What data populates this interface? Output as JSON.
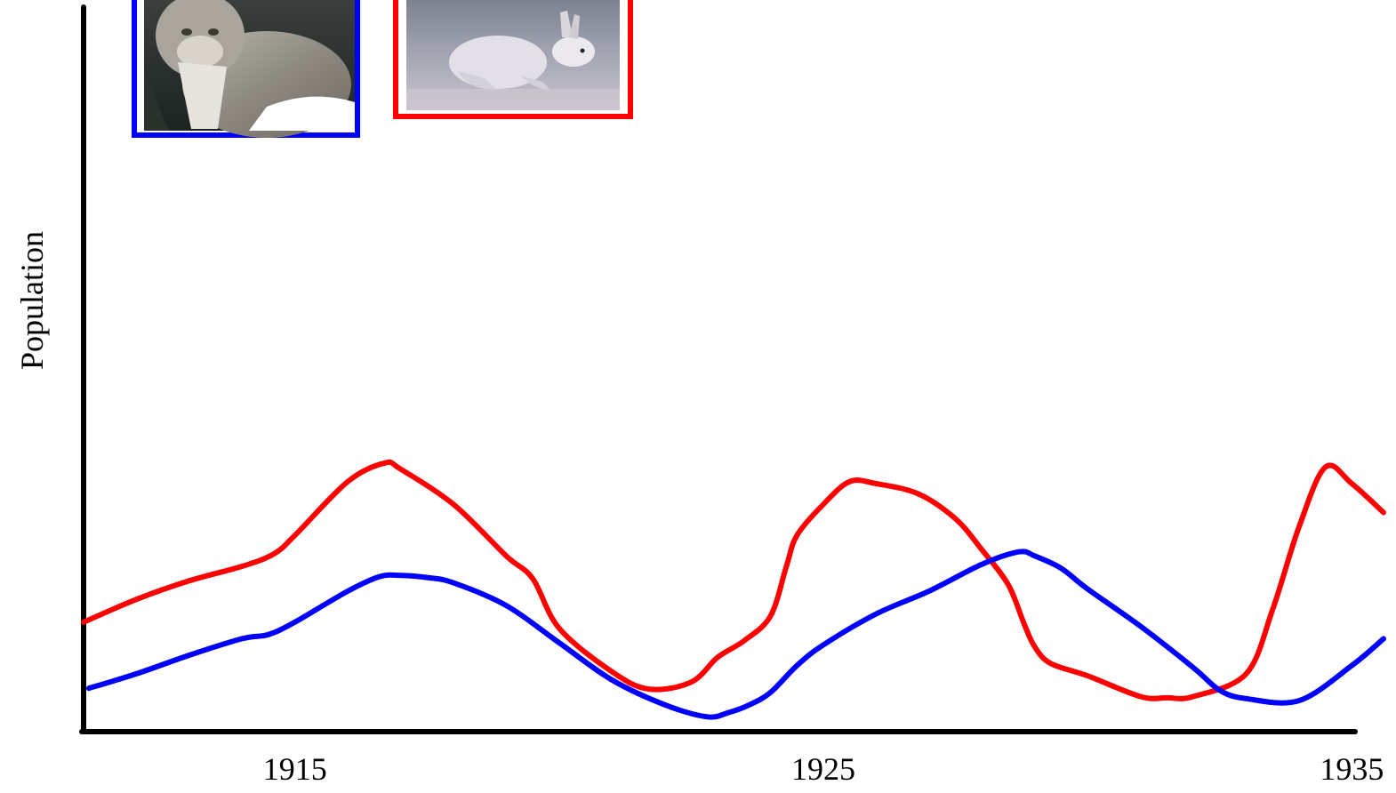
{
  "chart_data": {
    "type": "line",
    "title": "",
    "xlabel": "",
    "ylabel": "Population",
    "x_ticks": [
      1915,
      1925,
      1935
    ],
    "xlim": [
      1911,
      1935.6
    ],
    "ylim": [
      0,
      100
    ],
    "grid": false,
    "legend": "none",
    "series": [
      {
        "key": "lynx",
        "color": "#0000ff",
        "picture": "lynx-photo",
        "x": [
          1911.1,
          1912,
          1913,
          1914,
          1914.5,
          1915,
          1916,
          1916.6,
          1917,
          1917.5,
          1918,
          1919,
          1920,
          1921,
          1922,
          1922.8,
          1923.2,
          1923.6,
          1924,
          1924.5,
          1925,
          1926,
          1927,
          1928,
          1928.7,
          1929,
          1929.5,
          1930,
          1931,
          1932,
          1932.5,
          1933,
          1934,
          1935,
          1935.6
        ],
        "y": [
          10.5,
          14,
          18.5,
          22.5,
          23.5,
          26.5,
          34,
          37.5,
          37.8,
          37.3,
          36,
          30.5,
          21.5,
          12.5,
          6.5,
          3.6,
          4.6,
          6.5,
          9.5,
          16,
          21,
          28.5,
          34,
          40.5,
          43.5,
          42.5,
          39.5,
          34.5,
          25.5,
          15.5,
          10,
          8,
          7.5,
          16,
          22.5
        ]
      },
      {
        "key": "hare",
        "color": "#ff0000",
        "picture": "snowshoe-hare-photo",
        "x": [
          1911,
          1912,
          1913,
          1914,
          1914.6,
          1915,
          1916,
          1916.7,
          1917,
          1918,
          1919,
          1919.5,
          1920,
          1921,
          1921.7,
          1922.5,
          1923,
          1923.5,
          1924,
          1924.3,
          1924.5,
          1925,
          1925.5,
          1926,
          1926.8,
          1927.5,
          1928,
          1928.5,
          1928.8,
          1929,
          1929.3,
          1930,
          1931,
          1931.5,
          1932,
          1933,
          1933.5,
          1934,
          1934.5,
          1935,
          1935.6
        ],
        "y": [
          26.5,
          32,
          36.5,
          40,
          43,
          47.5,
          60.5,
          65,
          63.5,
          55,
          42.5,
          37,
          25,
          14.5,
          10.3,
          12,
          18,
          22,
          28,
          40,
          47.5,
          55,
          60.5,
          60,
          57.5,
          51.5,
          44,
          35.5,
          26,
          20.5,
          16.5,
          13.5,
          8.5,
          8.2,
          8.5,
          14,
          29.5,
          49.5,
          64,
          60,
          53
        ]
      }
    ]
  }
}
